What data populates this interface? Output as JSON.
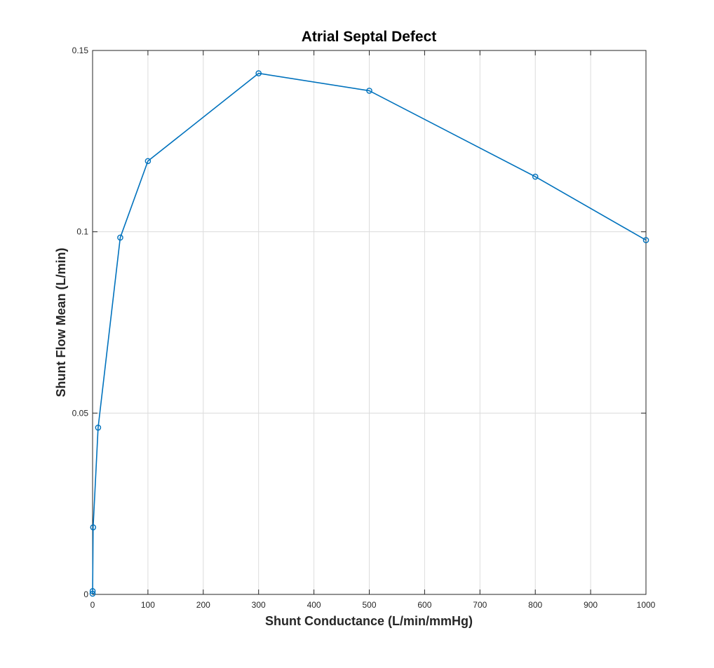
{
  "chart_data": {
    "type": "line",
    "title": "Atrial Septal Defect",
    "xlabel": "Shunt Conductance (L/min/mmHg)",
    "ylabel": "Shunt Flow Mean (L/min)",
    "xlim": [
      0,
      1000
    ],
    "ylim": [
      0,
      0.15
    ],
    "xticks": [
      0,
      100,
      200,
      300,
      400,
      500,
      600,
      700,
      800,
      900,
      1000
    ],
    "xtick_labels": [
      "0",
      "100",
      "200",
      "300",
      "400",
      "500",
      "600",
      "700",
      "800",
      "900",
      "1000"
    ],
    "yticks": [
      0,
      0.05,
      0.1,
      0.15
    ],
    "ytick_labels": [
      "0",
      "0.05",
      "0.1",
      "0.15"
    ],
    "grid": true,
    "series": [
      {
        "color": "#0072BD",
        "marker": "circle",
        "x": [
          0.01,
          0.1,
          1,
          10,
          50,
          100,
          300,
          500,
          800,
          1000
        ],
        "y": [
          0.0002,
          0.0009,
          0.0185,
          0.046,
          0.0984,
          0.1195,
          0.1437,
          0.1389,
          0.1152,
          0.0977
        ]
      }
    ]
  }
}
